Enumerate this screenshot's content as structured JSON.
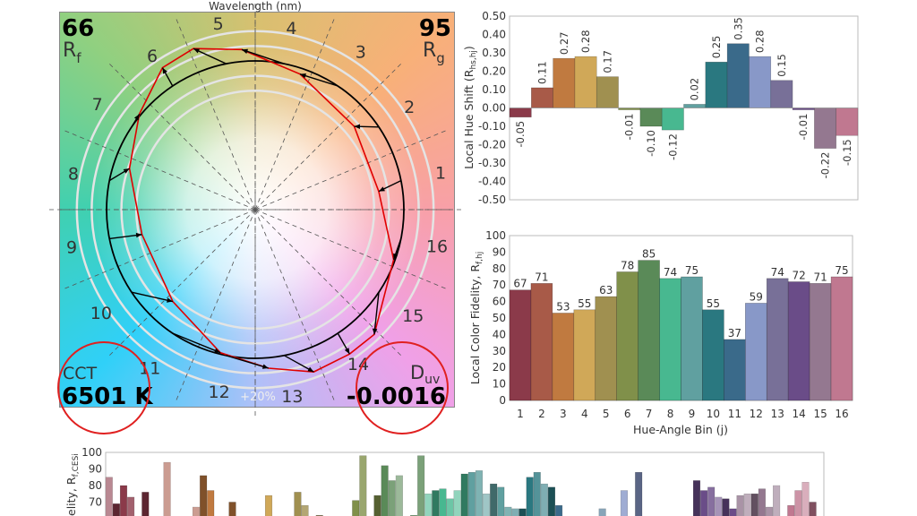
{
  "chart_data": [
    {
      "type": "vector-graphic",
      "title": "Wavelength (nm)",
      "rf_value": "66",
      "rf_label": "R",
      "rf_sub": "f",
      "rg_value": "95",
      "rg_label": "R",
      "rg_sub": "g",
      "cct_label": "CCT",
      "cct_value": "6501 K",
      "duv_label": "D",
      "duv_sub": "uv",
      "duv_value": "-0.0016",
      "scale_label": "+20%",
      "bin_labels": [
        "1",
        "2",
        "3",
        "4",
        "5",
        "6",
        "7",
        "8",
        "9",
        "10",
        "11",
        "12",
        "13",
        "14",
        "15",
        "16"
      ],
      "test_chroma_ratio": [
        0.84,
        0.87,
        0.96,
        1.08,
        1.16,
        1.14,
        1.01,
        0.89,
        0.78,
        0.83,
        0.99,
        1.07,
        1.16,
        1.16,
        1.16,
        0.99
      ],
      "test_hue_shift_rad": [
        -0.05,
        0.11,
        0.27,
        0.28,
        0.17,
        -0.01,
        -0.1,
        -0.12,
        0.02,
        0.25,
        0.35,
        0.28,
        0.15,
        -0.01,
        -0.22,
        -0.15
      ],
      "reference_color": "#000000",
      "test_color": "#e00000",
      "annotation_color": "#e02020"
    },
    {
      "type": "bar",
      "ylabel": "Local Hue Shift (R",
      "ylabel_sub": "hs,hj",
      "ylabel_end": ")",
      "ylim": [
        -0.5,
        0.5
      ],
      "yticks": [
        "0.50",
        "0.40",
        "0.30",
        "0.20",
        "0.10",
        "0.00",
        "-0.10",
        "-0.20",
        "-0.30",
        "-0.40",
        "-0.50"
      ],
      "categories": [
        "1",
        "2",
        "3",
        "4",
        "5",
        "6",
        "7",
        "8",
        "9",
        "10",
        "11",
        "12",
        "13",
        "14",
        "15",
        "16"
      ],
      "values": [
        -0.05,
        0.11,
        0.27,
        0.28,
        0.17,
        -0.01,
        -0.1,
        -0.12,
        0.02,
        0.25,
        0.35,
        0.28,
        0.15,
        -0.01,
        -0.22,
        -0.15
      ],
      "labels": [
        "-0.05",
        "0.11",
        "0.27",
        "0.28",
        "0.17",
        "-0.01",
        "-0.10",
        "-0.12",
        "0.02",
        "0.25",
        "0.35",
        "0.28",
        "0.15",
        "-0.01",
        "-0.22",
        "-0.15"
      ]
    },
    {
      "type": "bar",
      "ylabel": "Local Color Fidelity, R",
      "ylabel_sub": "f,hj",
      "xlabel": "Hue-Angle Bin (j)",
      "ylim": [
        0,
        100
      ],
      "yticks": [
        "100",
        "90",
        "80",
        "70",
        "60",
        "50",
        "40",
        "30",
        "20",
        "10",
        "0"
      ],
      "categories": [
        "1",
        "2",
        "3",
        "4",
        "5",
        "6",
        "7",
        "8",
        "9",
        "10",
        "11",
        "12",
        "13",
        "14",
        "15",
        "16"
      ],
      "values": [
        67,
        71,
        53,
        55,
        63,
        78,
        85,
        74,
        75,
        55,
        37,
        59,
        74,
        72,
        71,
        75
      ]
    },
    {
      "type": "bar",
      "ylabel": "elity, R",
      "ylabel_sub": "f,CESi",
      "ylim": [
        60,
        100
      ],
      "yticks": [
        "100",
        "90",
        "80",
        "70"
      ],
      "values": [
        85,
        69,
        80,
        73,
        null,
        76,
        null,
        null,
        94,
        61,
        null,
        null,
        67,
        86,
        77,
        null,
        null,
        70,
        null,
        null,
        null,
        null,
        74,
        null,
        null,
        null,
        76,
        68,
        null,
        62,
        null,
        null,
        null,
        null,
        71,
        98,
        null,
        74,
        92,
        83,
        86,
        null,
        62,
        98,
        75,
        77,
        78,
        72,
        77,
        87,
        88,
        89,
        75,
        81,
        79,
        67,
        66,
        66,
        85,
        88,
        81,
        79,
        68,
        null,
        null,
        null,
        null,
        null,
        66,
        null,
        null,
        77,
        null,
        88,
        null,
        null,
        null,
        null,
        null,
        null,
        null,
        83,
        77,
        79,
        73,
        72,
        66,
        74,
        75,
        75,
        78,
        67,
        80,
        null,
        68,
        77,
        82,
        70,
        null
      ]
    }
  ],
  "bin_colors": [
    "#8b3a4a",
    "#a85a48",
    "#c07a40",
    "#d0a858",
    "#a09050",
    "#80904a",
    "#5a8a58",
    "#48b890",
    "#60a0a0",
    "#2a7880",
    "#3a6a8a",
    "#8898c8",
    "#787098",
    "#6a4c88",
    "#947890",
    "#c07890"
  ]
}
